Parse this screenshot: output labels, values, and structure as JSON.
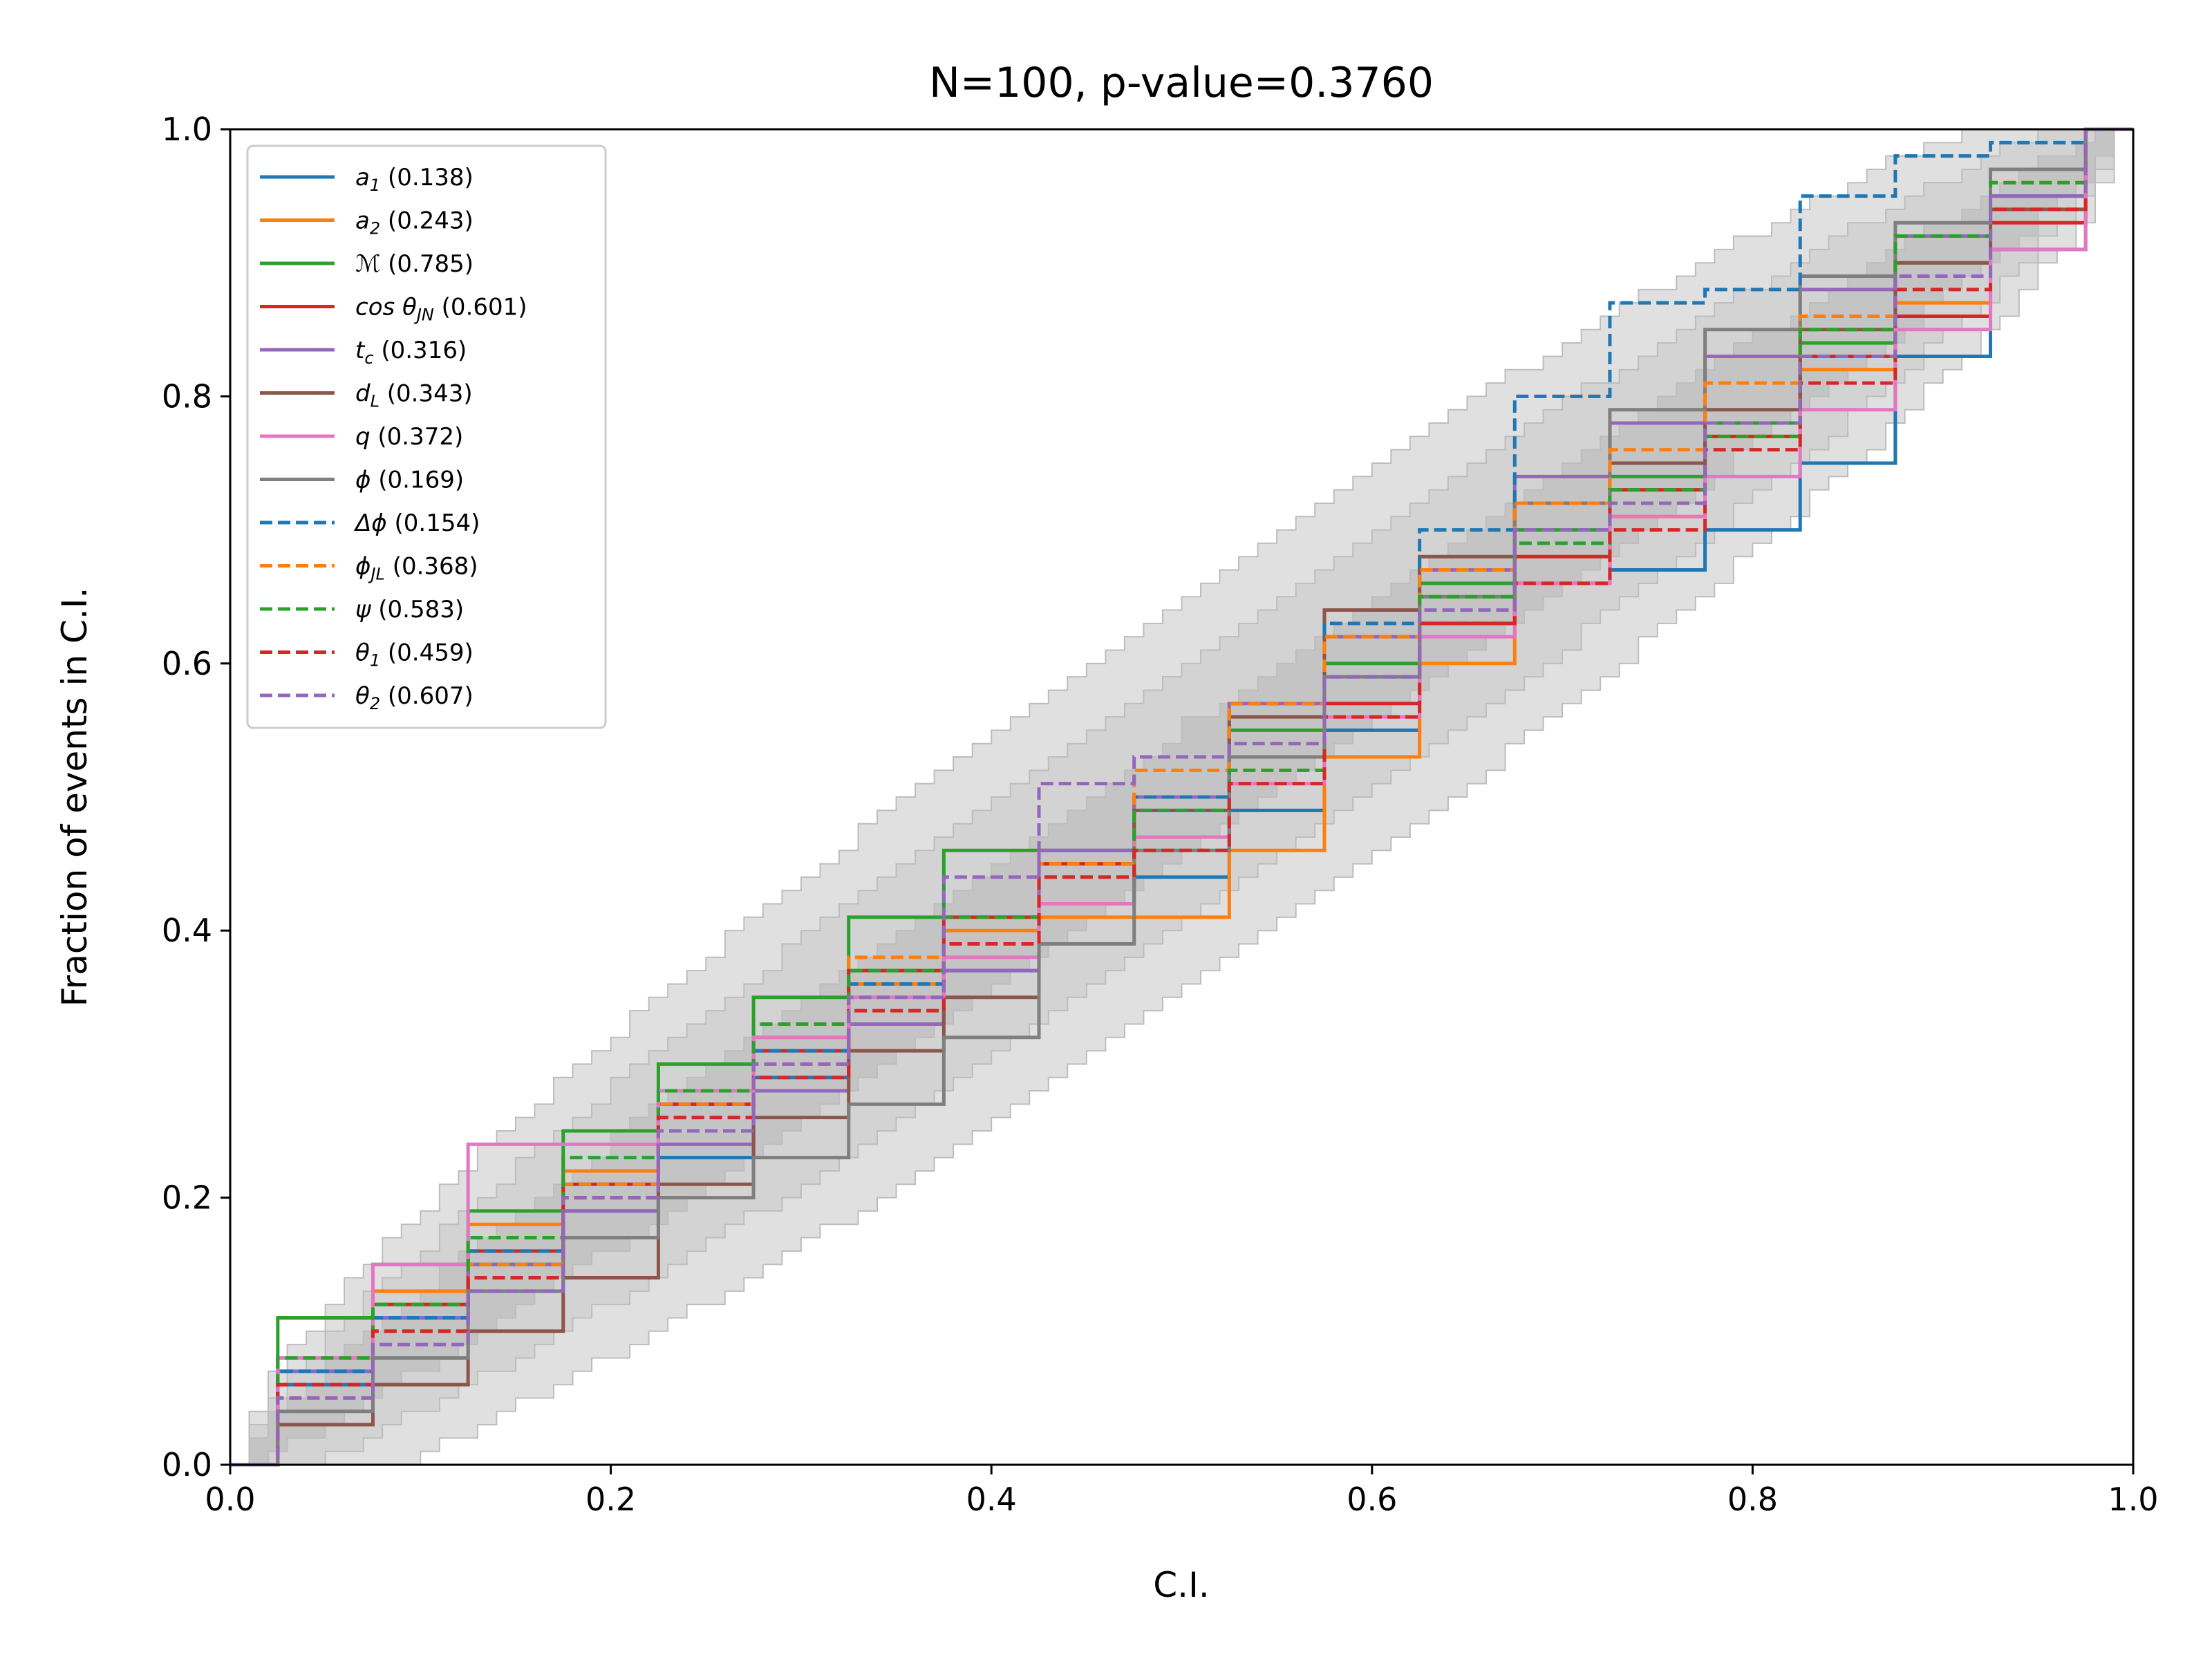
{
  "chart_data": {
    "type": "line",
    "title": "N=100, p-value=0.3760",
    "xlabel": "C.I.",
    "ylabel": "Fraction of events in C.I.",
    "xlim": [
      0,
      1
    ],
    "ylim": [
      0,
      1
    ],
    "xticks": [
      "0.0",
      "0.2",
      "0.4",
      "0.6",
      "0.8",
      "1.0"
    ],
    "yticks": [
      "0.0",
      "0.2",
      "0.4",
      "0.6",
      "0.8",
      "1.0"
    ],
    "grid": false,
    "legend_position": "top-left",
    "confidence_bands": [
      {
        "name": "3-sigma",
        "sigma": 3,
        "color": "#e0e0e0"
      },
      {
        "name": "2-sigma",
        "sigma": 2,
        "color": "#d3d3d3"
      },
      {
        "name": "1-sigma",
        "sigma": 1,
        "color": "#c4c4c4"
      }
    ],
    "series": [
      {
        "name": "a1",
        "label_main": "a",
        "label_sub": "1",
        "pvalue": "(0.138)",
        "color": "#1f77b4",
        "dash": false,
        "points": [
          [
            0,
            0
          ],
          [
            0.05,
            0.06
          ],
          [
            0.1,
            0.11
          ],
          [
            0.15,
            0.15
          ],
          [
            0.2,
            0.19
          ],
          [
            0.25,
            0.23
          ],
          [
            0.3,
            0.29
          ],
          [
            0.35,
            0.33
          ],
          [
            0.4,
            0.37
          ],
          [
            0.45,
            0.42
          ],
          [
            0.5,
            0.44
          ],
          [
            0.55,
            0.49
          ],
          [
            0.6,
            0.55
          ],
          [
            0.65,
            0.63
          ],
          [
            0.7,
            0.66
          ],
          [
            0.75,
            0.67
          ],
          [
            0.8,
            0.7
          ],
          [
            0.85,
            0.75
          ],
          [
            0.9,
            0.83
          ],
          [
            0.95,
            0.91
          ],
          [
            1,
            1
          ]
        ]
      },
      {
        "name": "a2",
        "label_main": "a",
        "label_sub": "2",
        "pvalue": "(0.243)",
        "color": "#ff7f0e",
        "dash": false,
        "points": [
          [
            0,
            0
          ],
          [
            0.05,
            0.07
          ],
          [
            0.1,
            0.13
          ],
          [
            0.15,
            0.18
          ],
          [
            0.2,
            0.22
          ],
          [
            0.25,
            0.27
          ],
          [
            0.3,
            0.32
          ],
          [
            0.35,
            0.36
          ],
          [
            0.4,
            0.4
          ],
          [
            0.45,
            0.41
          ],
          [
            0.5,
            0.41
          ],
          [
            0.55,
            0.46
          ],
          [
            0.6,
            0.53
          ],
          [
            0.65,
            0.6
          ],
          [
            0.7,
            0.66
          ],
          [
            0.75,
            0.71
          ],
          [
            0.8,
            0.77
          ],
          [
            0.85,
            0.82
          ],
          [
            0.9,
            0.87
          ],
          [
            0.95,
            0.94
          ],
          [
            1,
            1
          ]
        ]
      },
      {
        "name": "M",
        "label_main": "ℳ",
        "label_sub": "",
        "pvalue": "(0.785)",
        "color": "#2ca02c",
        "dash": false,
        "points": [
          [
            0,
            0
          ],
          [
            0.05,
            0.11
          ],
          [
            0.1,
            0.15
          ],
          [
            0.15,
            0.19
          ],
          [
            0.2,
            0.25
          ],
          [
            0.25,
            0.3
          ],
          [
            0.3,
            0.35
          ],
          [
            0.35,
            0.41
          ],
          [
            0.4,
            0.46
          ],
          [
            0.45,
            0.46
          ],
          [
            0.5,
            0.5
          ],
          [
            0.55,
            0.55
          ],
          [
            0.6,
            0.6
          ],
          [
            0.65,
            0.66
          ],
          [
            0.7,
            0.7
          ],
          [
            0.75,
            0.74
          ],
          [
            0.8,
            0.78
          ],
          [
            0.85,
            0.84
          ],
          [
            0.9,
            0.9
          ],
          [
            0.95,
            0.95
          ],
          [
            1,
            1
          ]
        ]
      },
      {
        "name": "costhetaJN",
        "label_main": "cos θ",
        "label_sub": "JN",
        "pvalue": "(0.601)",
        "color": "#d62728",
        "dash": false,
        "points": [
          [
            0,
            0
          ],
          [
            0.05,
            0.08
          ],
          [
            0.1,
            0.12
          ],
          [
            0.15,
            0.16
          ],
          [
            0.2,
            0.21
          ],
          [
            0.25,
            0.27
          ],
          [
            0.3,
            0.31
          ],
          [
            0.35,
            0.37
          ],
          [
            0.4,
            0.41
          ],
          [
            0.45,
            0.45
          ],
          [
            0.5,
            0.5
          ],
          [
            0.55,
            0.53
          ],
          [
            0.6,
            0.57
          ],
          [
            0.65,
            0.63
          ],
          [
            0.7,
            0.68
          ],
          [
            0.75,
            0.73
          ],
          [
            0.8,
            0.77
          ],
          [
            0.85,
            0.83
          ],
          [
            0.9,
            0.86
          ],
          [
            0.95,
            0.93
          ],
          [
            1,
            1
          ]
        ]
      },
      {
        "name": "tc",
        "label_main": "t",
        "label_sub": "c",
        "pvalue": "(0.316)",
        "color": "#9467bd",
        "dash": false,
        "points": [
          [
            0,
            0
          ],
          [
            0.05,
            0.07
          ],
          [
            0.1,
            0.11
          ],
          [
            0.15,
            0.15
          ],
          [
            0.2,
            0.19
          ],
          [
            0.25,
            0.24
          ],
          [
            0.3,
            0.28
          ],
          [
            0.35,
            0.33
          ],
          [
            0.4,
            0.37
          ],
          [
            0.45,
            0.46
          ],
          [
            0.5,
            0.5
          ],
          [
            0.55,
            0.57
          ],
          [
            0.6,
            0.62
          ],
          [
            0.65,
            0.67
          ],
          [
            0.7,
            0.74
          ],
          [
            0.75,
            0.78
          ],
          [
            0.8,
            0.83
          ],
          [
            0.85,
            0.88
          ],
          [
            0.9,
            0.92
          ],
          [
            0.95,
            0.95
          ],
          [
            1,
            1
          ]
        ]
      },
      {
        "name": "dL",
        "label_main": "d",
        "label_sub": "L",
        "pvalue": "(0.343)",
        "color": "#8c564b",
        "dash": false,
        "points": [
          [
            0,
            0
          ],
          [
            0.05,
            0.03
          ],
          [
            0.1,
            0.06
          ],
          [
            0.15,
            0.1
          ],
          [
            0.2,
            0.14
          ],
          [
            0.25,
            0.21
          ],
          [
            0.3,
            0.26
          ],
          [
            0.35,
            0.31
          ],
          [
            0.4,
            0.35
          ],
          [
            0.45,
            0.42
          ],
          [
            0.5,
            0.49
          ],
          [
            0.55,
            0.56
          ],
          [
            0.6,
            0.64
          ],
          [
            0.65,
            0.68
          ],
          [
            0.7,
            0.72
          ],
          [
            0.75,
            0.75
          ],
          [
            0.8,
            0.79
          ],
          [
            0.85,
            0.85
          ],
          [
            0.9,
            0.9
          ],
          [
            0.95,
            0.94
          ],
          [
            1,
            1
          ]
        ]
      },
      {
        "name": "q",
        "label_main": "q",
        "label_sub": "",
        "pvalue": "(0.372)",
        "color": "#e377c2",
        "dash": false,
        "points": [
          [
            0,
            0
          ],
          [
            0.05,
            0.08
          ],
          [
            0.1,
            0.15
          ],
          [
            0.15,
            0.24
          ],
          [
            0.2,
            0.24
          ],
          [
            0.25,
            0.28
          ],
          [
            0.3,
            0.32
          ],
          [
            0.35,
            0.35
          ],
          [
            0.4,
            0.38
          ],
          [
            0.45,
            0.42
          ],
          [
            0.5,
            0.47
          ],
          [
            0.55,
            0.51
          ],
          [
            0.6,
            0.56
          ],
          [
            0.65,
            0.62
          ],
          [
            0.7,
            0.66
          ],
          [
            0.75,
            0.71
          ],
          [
            0.8,
            0.74
          ],
          [
            0.85,
            0.79
          ],
          [
            0.9,
            0.85
          ],
          [
            0.95,
            0.91
          ],
          [
            1,
            1
          ]
        ]
      },
      {
        "name": "phi",
        "label_main": "ϕ",
        "label_sub": "",
        "pvalue": "(0.169)",
        "color": "#7f7f7f",
        "dash": false,
        "points": [
          [
            0,
            0
          ],
          [
            0.05,
            0.04
          ],
          [
            0.1,
            0.08
          ],
          [
            0.15,
            0.13
          ],
          [
            0.2,
            0.17
          ],
          [
            0.25,
            0.2
          ],
          [
            0.3,
            0.23
          ],
          [
            0.35,
            0.27
          ],
          [
            0.4,
            0.32
          ],
          [
            0.45,
            0.39
          ],
          [
            0.5,
            0.46
          ],
          [
            0.55,
            0.53
          ],
          [
            0.6,
            0.59
          ],
          [
            0.65,
            0.65
          ],
          [
            0.7,
            0.72
          ],
          [
            0.75,
            0.79
          ],
          [
            0.8,
            0.85
          ],
          [
            0.85,
            0.89
          ],
          [
            0.9,
            0.93
          ],
          [
            0.95,
            0.97
          ],
          [
            1,
            1
          ]
        ]
      },
      {
        "name": "deltaphi",
        "label_main": "Δϕ",
        "label_sub": "",
        "pvalue": "(0.154)",
        "color": "#1f77b4",
        "dash": true,
        "points": [
          [
            0,
            0
          ],
          [
            0.05,
            0.07
          ],
          [
            0.1,
            0.11
          ],
          [
            0.15,
            0.16
          ],
          [
            0.2,
            0.2
          ],
          [
            0.25,
            0.26
          ],
          [
            0.3,
            0.31
          ],
          [
            0.35,
            0.36
          ],
          [
            0.4,
            0.41
          ],
          [
            0.45,
            0.45
          ],
          [
            0.5,
            0.5
          ],
          [
            0.55,
            0.57
          ],
          [
            0.6,
            0.63
          ],
          [
            0.65,
            0.7
          ],
          [
            0.7,
            0.8
          ],
          [
            0.75,
            0.87
          ],
          [
            0.8,
            0.88
          ],
          [
            0.85,
            0.95
          ],
          [
            0.9,
            0.98
          ],
          [
            0.95,
            0.99
          ],
          [
            1,
            1
          ]
        ]
      },
      {
        "name": "phiJL",
        "label_main": "ϕ",
        "label_sub": "JL",
        "pvalue": "(0.368)",
        "color": "#ff7f0e",
        "dash": true,
        "points": [
          [
            0,
            0
          ],
          [
            0.05,
            0.05
          ],
          [
            0.1,
            0.1
          ],
          [
            0.15,
            0.15
          ],
          [
            0.2,
            0.21
          ],
          [
            0.25,
            0.27
          ],
          [
            0.3,
            0.3
          ],
          [
            0.35,
            0.38
          ],
          [
            0.4,
            0.41
          ],
          [
            0.45,
            0.45
          ],
          [
            0.5,
            0.52
          ],
          [
            0.55,
            0.57
          ],
          [
            0.6,
            0.62
          ],
          [
            0.65,
            0.67
          ],
          [
            0.7,
            0.72
          ],
          [
            0.75,
            0.76
          ],
          [
            0.8,
            0.81
          ],
          [
            0.85,
            0.86
          ],
          [
            0.9,
            0.92
          ],
          [
            0.95,
            0.96
          ],
          [
            1,
            1
          ]
        ]
      },
      {
        "name": "psi",
        "label_main": "ψ",
        "label_sub": "",
        "pvalue": "(0.583)",
        "color": "#2ca02c",
        "dash": true,
        "points": [
          [
            0,
            0
          ],
          [
            0.05,
            0.08
          ],
          [
            0.1,
            0.12
          ],
          [
            0.15,
            0.17
          ],
          [
            0.2,
            0.23
          ],
          [
            0.25,
            0.28
          ],
          [
            0.3,
            0.33
          ],
          [
            0.35,
            0.37
          ],
          [
            0.4,
            0.41
          ],
          [
            0.45,
            0.44
          ],
          [
            0.5,
            0.49
          ],
          [
            0.55,
            0.52
          ],
          [
            0.6,
            0.59
          ],
          [
            0.65,
            0.65
          ],
          [
            0.7,
            0.69
          ],
          [
            0.75,
            0.73
          ],
          [
            0.8,
            0.77
          ],
          [
            0.85,
            0.85
          ],
          [
            0.9,
            0.92
          ],
          [
            0.95,
            0.96
          ],
          [
            1,
            1
          ]
        ]
      },
      {
        "name": "theta1",
        "label_main": "θ",
        "label_sub": "1",
        "pvalue": "(0.459)",
        "color": "#d62728",
        "dash": true,
        "points": [
          [
            0,
            0
          ],
          [
            0.05,
            0.06
          ],
          [
            0.1,
            0.1
          ],
          [
            0.15,
            0.14
          ],
          [
            0.2,
            0.2
          ],
          [
            0.25,
            0.26
          ],
          [
            0.3,
            0.29
          ],
          [
            0.35,
            0.34
          ],
          [
            0.4,
            0.39
          ],
          [
            0.45,
            0.44
          ],
          [
            0.5,
            0.46
          ],
          [
            0.55,
            0.51
          ],
          [
            0.6,
            0.56
          ],
          [
            0.65,
            0.63
          ],
          [
            0.7,
            0.66
          ],
          [
            0.75,
            0.7
          ],
          [
            0.8,
            0.76
          ],
          [
            0.85,
            0.81
          ],
          [
            0.9,
            0.88
          ],
          [
            0.95,
            0.94
          ],
          [
            1,
            1
          ]
        ]
      },
      {
        "name": "theta2",
        "label_main": "θ",
        "label_sub": "2",
        "pvalue": "(0.607)",
        "color": "#9467bd",
        "dash": true,
        "points": [
          [
            0,
            0
          ],
          [
            0.05,
            0.05
          ],
          [
            0.1,
            0.09
          ],
          [
            0.15,
            0.13
          ],
          [
            0.2,
            0.2
          ],
          [
            0.25,
            0.25
          ],
          [
            0.3,
            0.3
          ],
          [
            0.35,
            0.35
          ],
          [
            0.4,
            0.44
          ],
          [
            0.45,
            0.51
          ],
          [
            0.5,
            0.53
          ],
          [
            0.55,
            0.54
          ],
          [
            0.6,
            0.59
          ],
          [
            0.65,
            0.64
          ],
          [
            0.7,
            0.7
          ],
          [
            0.75,
            0.72
          ],
          [
            0.8,
            0.78
          ],
          [
            0.85,
            0.83
          ],
          [
            0.9,
            0.89
          ],
          [
            0.95,
            0.95
          ],
          [
            1,
            1
          ]
        ]
      }
    ]
  }
}
